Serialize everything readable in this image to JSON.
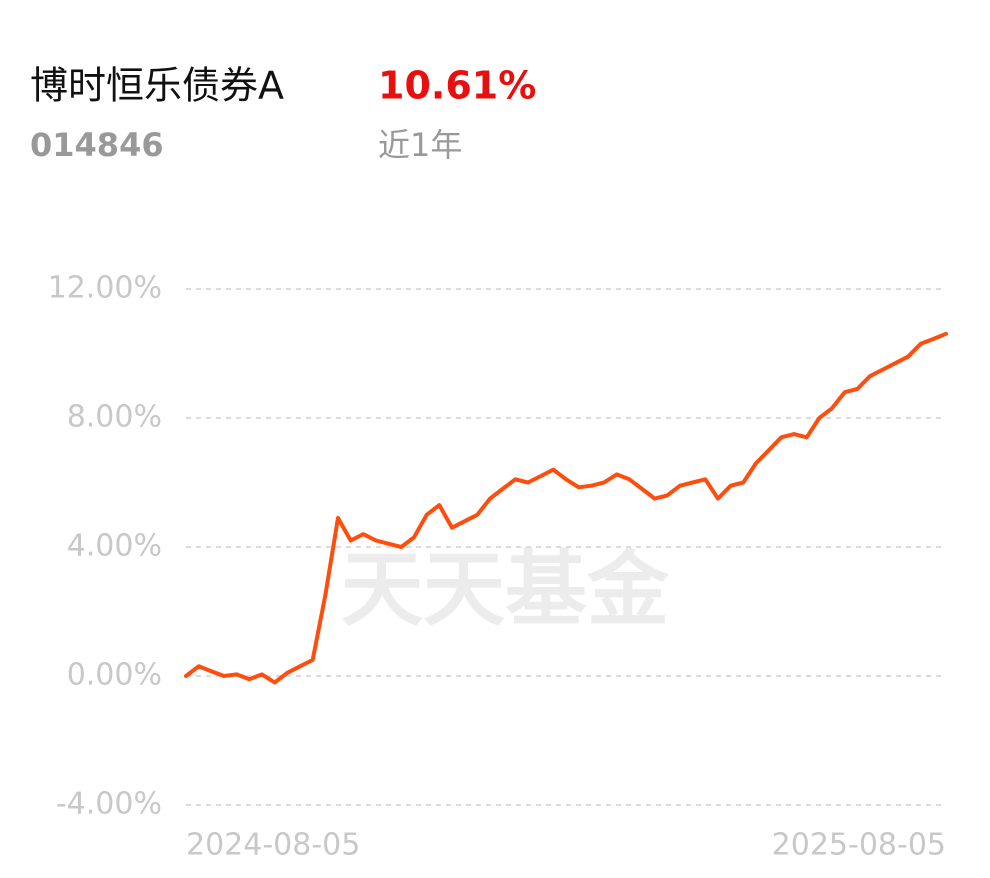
{
  "fund": {
    "name": "博时恒乐债券A",
    "return": "10.61%",
    "code": "014846",
    "period": "近1年"
  },
  "watermark": "天天基金",
  "chart_data": {
    "type": "line",
    "categories": [
      "2024-08-05",
      null,
      null,
      null,
      null,
      null,
      null,
      null,
      null,
      null,
      null,
      null,
      null,
      null,
      null,
      null,
      null,
      null,
      null,
      null,
      null,
      null,
      null,
      null,
      null,
      null,
      null,
      null,
      null,
      null,
      null,
      null,
      null,
      null,
      null,
      null,
      null,
      null,
      null,
      null,
      null,
      null,
      null,
      null,
      null,
      null,
      null,
      null,
      null,
      null,
      null,
      null,
      null,
      null,
      null,
      null,
      null,
      null,
      null,
      null,
      "2025-08-05"
    ],
    "values": [
      0.0,
      0.3,
      0.15,
      0.0,
      0.05,
      -0.1,
      0.05,
      -0.2,
      0.1,
      0.3,
      0.5,
      2.5,
      4.9,
      4.2,
      4.4,
      4.2,
      4.1,
      4.0,
      4.3,
      5.0,
      5.3,
      4.6,
      4.8,
      5.0,
      5.5,
      5.8,
      6.1,
      6.0,
      6.2,
      6.4,
      6.1,
      5.85,
      5.9,
      6.0,
      6.25,
      6.1,
      5.8,
      5.5,
      5.6,
      5.9,
      6.0,
      6.1,
      5.5,
      5.9,
      6.0,
      6.6,
      7.0,
      7.4,
      7.5,
      7.4,
      8.0,
      8.3,
      8.8,
      8.9,
      9.3,
      9.5,
      9.7,
      9.9,
      10.3,
      10.45,
      10.61
    ],
    "color": "#ff4d0d",
    "ylim": [
      -4,
      12
    ],
    "yticks": [
      {
        "value": -4,
        "label": "-4.00%"
      },
      {
        "value": 0,
        "label": "0.00%"
      },
      {
        "value": 4,
        "label": "4.00%"
      },
      {
        "value": 8,
        "label": "8.00%"
      },
      {
        "value": 12,
        "label": "12.00%"
      }
    ],
    "grid": true
  }
}
